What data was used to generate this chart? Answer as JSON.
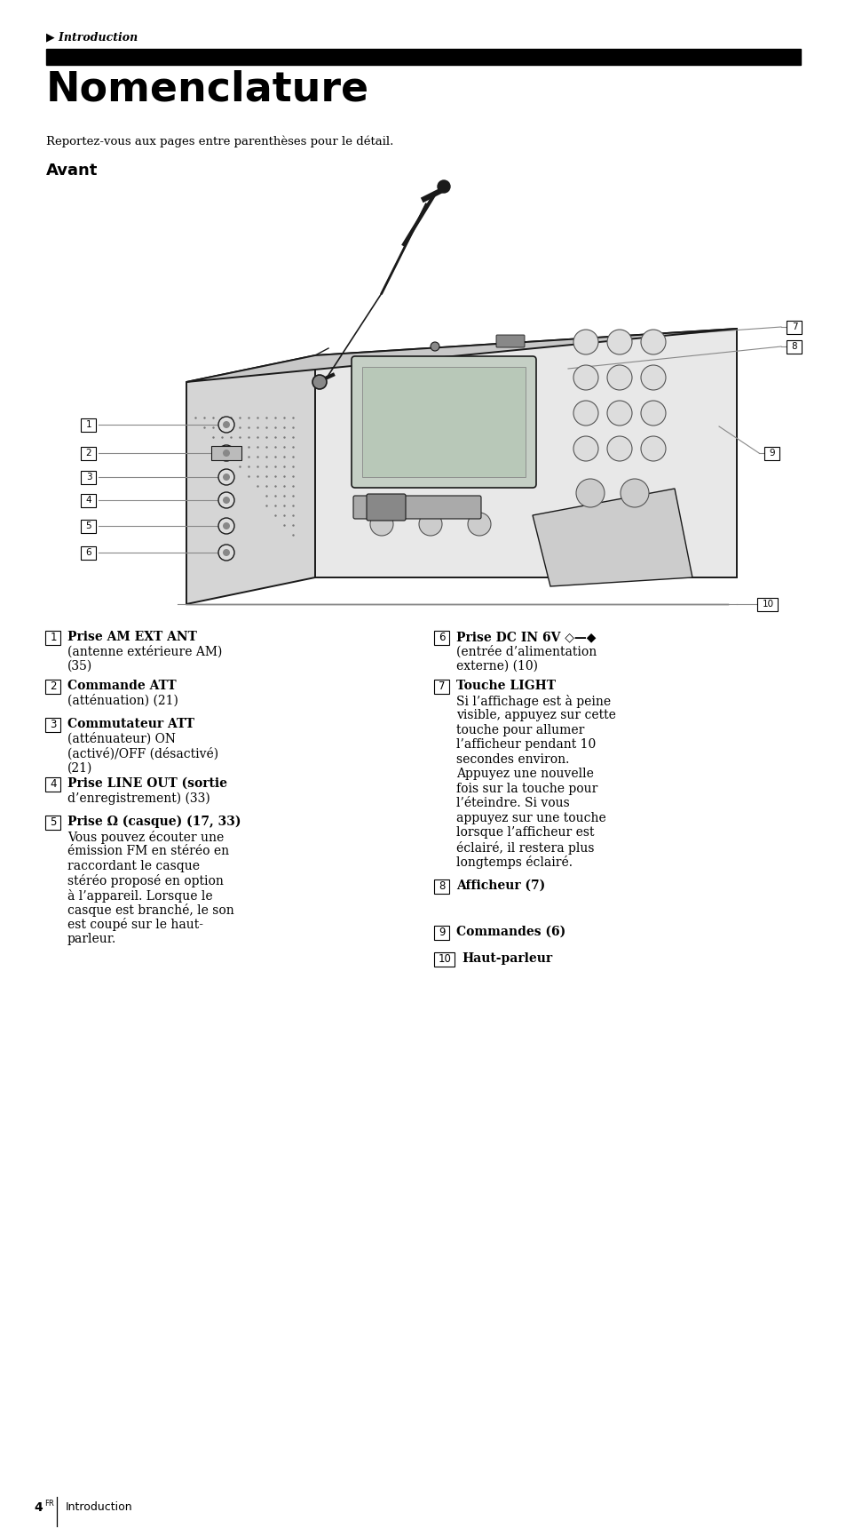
{
  "bg_color": "#ffffff",
  "page_width": 9.54,
  "page_height": 17.29,
  "header_italic": "▶ Introduction",
  "title": "Nomenclature",
  "subtitle": "Reportez-vous aux pages entre parenthèses pour le détail.",
  "section_avant": "Avant",
  "left_items": [
    {
      "num": "1",
      "lines": [
        "Prise AM EXT ANT",
        "(antenne extérieure AM)",
        "(35)"
      ],
      "bold_idx": 0
    },
    {
      "num": "2",
      "lines": [
        "Commande ATT",
        "(atténuation) (21)"
      ],
      "bold_idx": 0
    },
    {
      "num": "3",
      "lines": [
        "Commutateur ATT",
        "(atténuateur) ON",
        "(activé)/OFF (désactivé)",
        "(21)"
      ],
      "bold_idx": 0
    },
    {
      "num": "4",
      "lines": [
        "Prise LINE OUT (sortie",
        "d’enregistrement) (33)"
      ],
      "bold_idx": 0
    },
    {
      "num": "5",
      "lines": [
        "Prise Ω (casque) (17, 33)",
        "Vous pouvez écouter une",
        "émission FM en stéréo en",
        "raccordant le casque",
        "stéréo proposé en option",
        "à l’appareil. Lorsque le",
        "casque est branché, le son",
        "est coupé sur le haut-",
        "parleur."
      ],
      "bold_idx": 0
    }
  ],
  "right_items": [
    {
      "num": "6",
      "lines": [
        "Prise DC IN 6V ◇—◆",
        "(entrée d’alimentation",
        "externe) (10)"
      ],
      "bold_idx": 0
    },
    {
      "num": "7",
      "lines": [
        "Touche LIGHT",
        "Si l’affichage est à peine",
        "visible, appuyez sur cette",
        "touche pour allumer",
        "l’afficheur pendant 10",
        "secondes environ.",
        "Appuyez une nouvelle",
        "fois sur la touche pour",
        "l’éteindre. Si vous",
        "appuyez sur une touche",
        "lorsque l’afficheur est",
        "éclairé, il restera plus",
        "longtemps éclairé."
      ],
      "bold_idx": 0
    },
    {
      "num": "8",
      "lines": [
        "Afficheur (7)"
      ],
      "bold_idx": 0
    },
    {
      "num": "9",
      "lines": [
        "Commandes (6)"
      ],
      "bold_idx": 0
    },
    {
      "num": "10",
      "lines": [
        "Haut-parleur"
      ],
      "bold_idx": 0
    }
  ],
  "footer_number": "4",
  "footer_sup": "FR",
  "footer_text": "Introduction"
}
